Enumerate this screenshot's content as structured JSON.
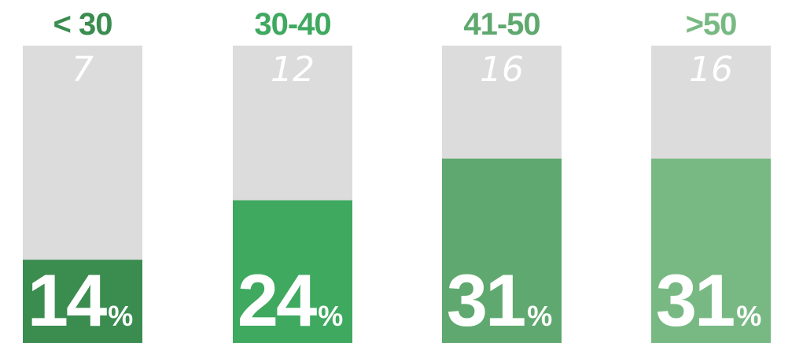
{
  "chart_data": {
    "type": "bar",
    "categories": [
      "< 30",
      "30-40",
      "41-50",
      ">50"
    ],
    "counts": [
      "7",
      "12",
      "16",
      "16"
    ],
    "percent_values": [
      14,
      24,
      31,
      31
    ],
    "percent_suffix": "%",
    "ylim": [
      0,
      50
    ],
    "grid": false,
    "colors": {
      "track": "#dcdcdc",
      "bars": [
        "#3a8c4f",
        "#3ea95f",
        "#5fa86f",
        "#78b983"
      ],
      "labels": [
        "#3a8c4f",
        "#3ea95f",
        "#5fa86f",
        "#78b983"
      ]
    }
  }
}
